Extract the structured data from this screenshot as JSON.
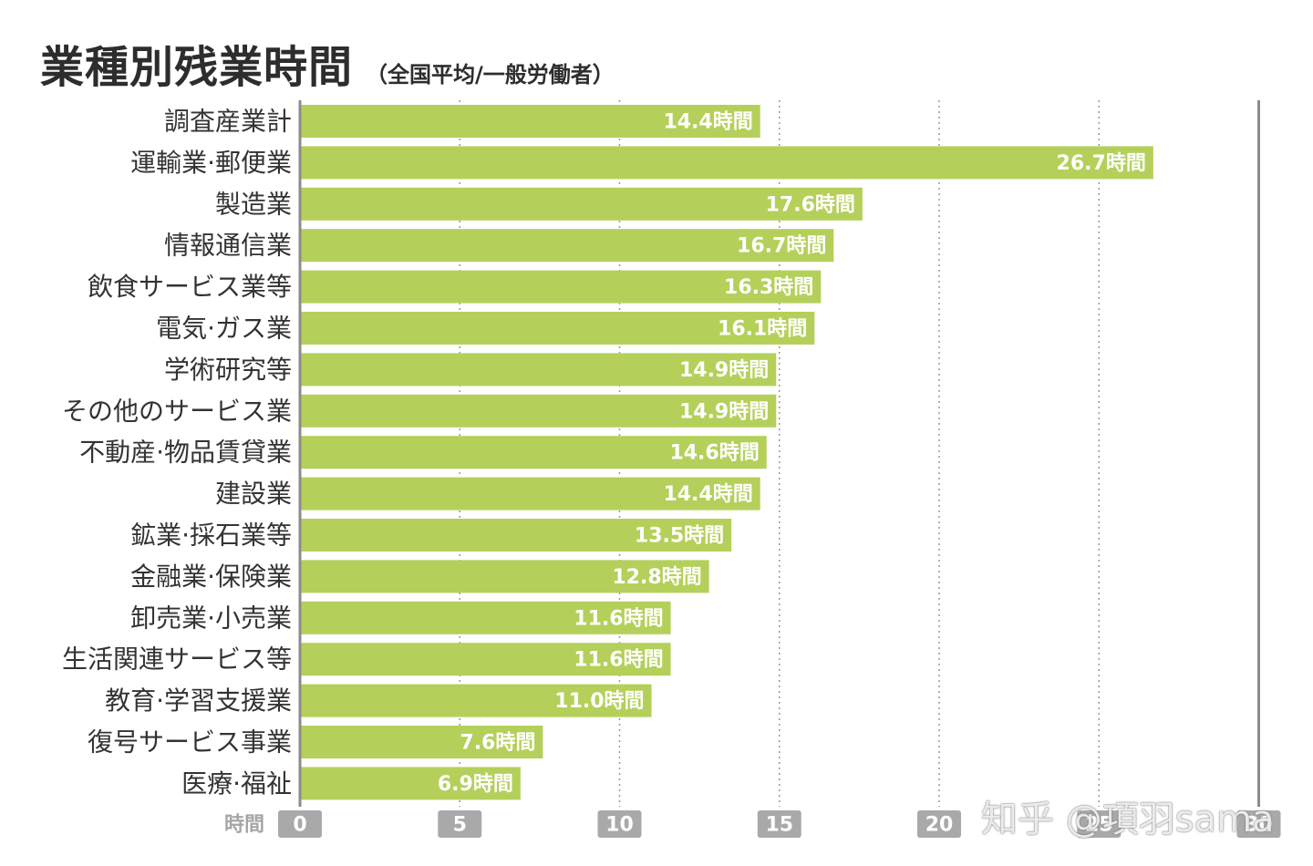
{
  "chart_data": {
    "type": "bar",
    "orientation": "horizontal",
    "title": "業種別残業時間",
    "subtitle": "（全国平均/一般労働者）",
    "xlabel": "時間",
    "ylabel": "",
    "xlim": [
      0,
      30
    ],
    "x_ticks": [
      0,
      5,
      10,
      15,
      20,
      25,
      30
    ],
    "grid": "dotted vertical",
    "bar_color": "#b4d05a",
    "tick_badge_color": "#a9a9a9",
    "value_suffix": "時間",
    "categories": [
      "調査産業計",
      "運輸業·郵便業",
      "製造業",
      "情報通信業",
      "飲食サービス業等",
      "電気·ガス業",
      "学術研究等",
      "その他のサービス業",
      "不動産·物品賃貸業",
      "建設業",
      "鉱業·採石業等",
      "金融業·保険業",
      "卸売業·小売業",
      "生活関連サービス等",
      "教育·学習支援業",
      "復号サービス事業",
      "医療·福祉"
    ],
    "values": [
      14.4,
      26.7,
      17.6,
      16.7,
      16.3,
      16.1,
      14.9,
      14.9,
      14.6,
      14.4,
      13.5,
      12.8,
      11.6,
      11.6,
      11.0,
      7.6,
      6.9
    ],
    "value_labels": [
      "14.4時間",
      "26.7時間",
      "17.6時間",
      "16.7時間",
      "16.3時間",
      "16.1時間",
      "14.9時間",
      "14.9時間",
      "14.6時間",
      "14.4時間",
      "13.5時間",
      "12.8時間",
      "11.6時間",
      "11.6時間",
      "11.0時間",
      "7.6時間",
      "6.9時間"
    ]
  },
  "watermark": "知乎 @項羽sama"
}
